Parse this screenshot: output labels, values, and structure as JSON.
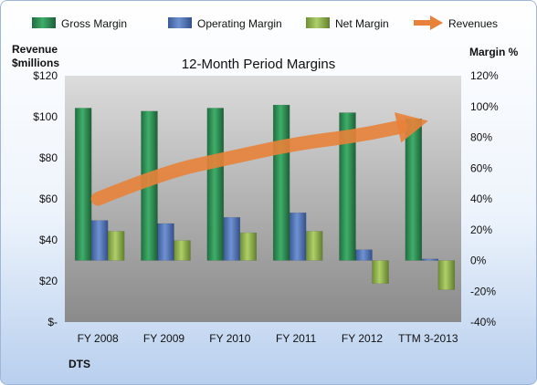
{
  "chart_data": {
    "type": "bar",
    "title": "12-Month Period Margins",
    "categories": [
      "FY 2008",
      "FY 2009",
      "FY 2010",
      "FY 2011",
      "FY 2012",
      "TTM 3-2013"
    ],
    "series": [
      {
        "name": "Gross Margin",
        "axis": "right",
        "values": [
          99,
          97,
          99,
          101,
          96,
          92
        ]
      },
      {
        "name": "Operating Margin",
        "axis": "right",
        "values": [
          26,
          24,
          28,
          31,
          7,
          1
        ]
      },
      {
        "name": "Net Margin",
        "axis": "right",
        "values": [
          19,
          13,
          18,
          19,
          -15,
          -19
        ]
      },
      {
        "name": "Revenues",
        "axis": "left",
        "style": "arrow",
        "values": [
          60,
          73,
          80,
          87,
          91,
          98
        ]
      }
    ],
    "left_axis": {
      "label_lines": [
        "Revenue",
        "$millions"
      ],
      "range": [
        0,
        120
      ],
      "ticks": [
        "$-",
        "$20",
        "$40",
        "$60",
        "$80",
        "$100",
        "$120"
      ]
    },
    "right_axis": {
      "label": "Margin %",
      "range": [
        -40,
        120
      ],
      "ticks": [
        "-40%",
        "-20%",
        "0%",
        "20%",
        "40%",
        "60%",
        "80%",
        "100%",
        "120%"
      ]
    },
    "legend_position": "top",
    "footnote": "DTS",
    "colors": {
      "Gross Margin": "#2e8b57",
      "Operating Margin": "#4f73b6",
      "Net Margin": "#8fb04c",
      "Revenues": "#e8823a"
    }
  }
}
